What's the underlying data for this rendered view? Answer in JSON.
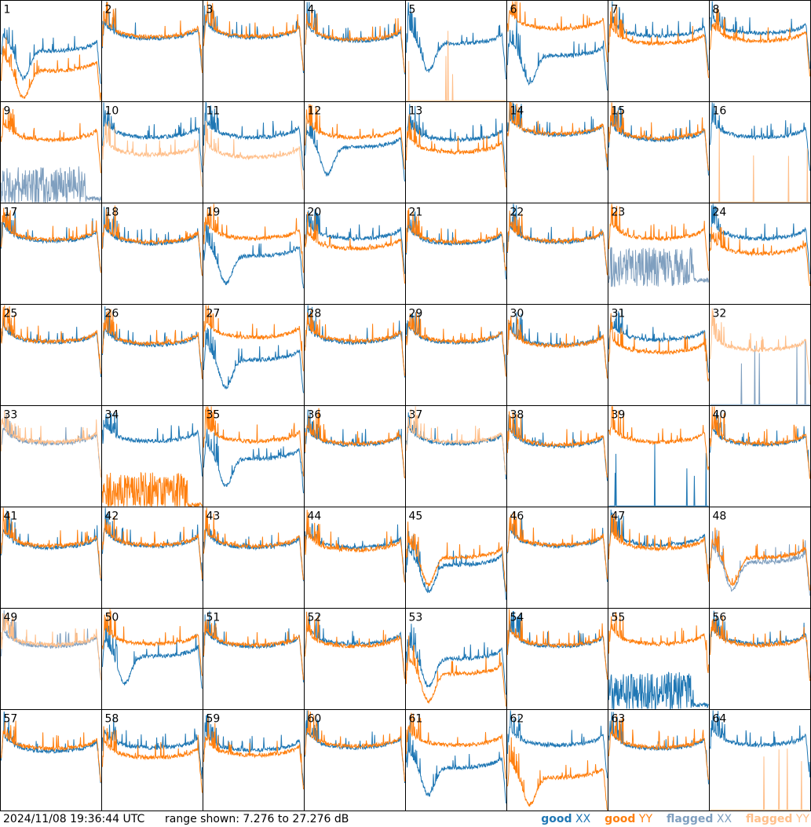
{
  "footer": {
    "timestamp": "2024/11/08 19:36:44 UTC",
    "range_text": "range shown: 7.276 to 27.276 dB"
  },
  "legend": [
    {
      "id": "good-xx",
      "word": "good",
      "pol": "XX",
      "color": "#1f77b4",
      "word_color": "#1f77b4"
    },
    {
      "id": "good-yy",
      "word": "good",
      "pol": "YY",
      "color": "#ff7f0e",
      "word_color": "#ff7f0e"
    },
    {
      "id": "flagged-xx",
      "word": "flagged",
      "pol": "XX",
      "color": "#7f9fbf",
      "word_color": "#7f9fbf"
    },
    {
      "id": "flagged-yy",
      "word": "flagged",
      "pol": "YY",
      "color": "#ffbf8a",
      "word_color": "#ffbf8a"
    }
  ],
  "colors": {
    "good_xx": "#1f77b4",
    "good_yy": "#ff7f0e",
    "flagged_xx": "#7f9fbf",
    "flagged_yy": "#ffbf8a"
  },
  "chart_data": {
    "type": "line",
    "layout": "8x8 small multiples (one panel per tile 1-64)",
    "ylim": [
      7.276,
      27.276
    ],
    "yunit": "dB",
    "xlabel": "",
    "ylabel": "",
    "note_x": "channel index 0-1 (normalized spectrum)",
    "panels": [
      {
        "tile": 1,
        "xx": {
          "shape": "drop",
          "level": 18.5,
          "flag": false
        },
        "yy": {
          "shape": "drop",
          "level": 14.5,
          "flag": false
        }
      },
      {
        "tile": 2,
        "xx": {
          "shape": "normal",
          "level": 21.0,
          "flag": false
        },
        "yy": {
          "shape": "normal",
          "level": 21.3,
          "flag": false
        }
      },
      {
        "tile": 3,
        "xx": {
          "shape": "normal",
          "level": 21.2,
          "flag": false
        },
        "yy": {
          "shape": "normal",
          "level": 21.4,
          "flag": false
        }
      },
      {
        "tile": 4,
        "xx": {
          "shape": "normal",
          "level": 20.5,
          "flag": false
        },
        "yy": {
          "shape": "normal",
          "level": 20.8,
          "flag": false
        }
      },
      {
        "tile": 5,
        "xx": {
          "shape": "drop",
          "level": 20.0,
          "flag": false
        },
        "yy": {
          "shape": "dead",
          "level": 7.3,
          "flag": true
        }
      },
      {
        "tile": 6,
        "xx": {
          "shape": "drop",
          "level": 17.5,
          "flag": false
        },
        "yy": {
          "shape": "normal",
          "level": 23.0,
          "flag": false
        }
      },
      {
        "tile": 7,
        "xx": {
          "shape": "normal",
          "level": 21.5,
          "flag": false
        },
        "yy": {
          "shape": "normal",
          "level": 20.0,
          "flag": false
        }
      },
      {
        "tile": 8,
        "xx": {
          "shape": "normal",
          "level": 22.0,
          "flag": false
        },
        "yy": {
          "shape": "normal",
          "level": 20.5,
          "flag": false
        }
      },
      {
        "tile": 9,
        "xx": {
          "shape": "noisy",
          "level": 9.0,
          "flag": true
        },
        "yy": {
          "shape": "normal",
          "level": 21.0,
          "flag": false
        }
      },
      {
        "tile": 10,
        "xx": {
          "shape": "normal",
          "level": 21.5,
          "flag": false
        },
        "yy": {
          "shape": "normal",
          "level": 18.0,
          "flag": true
        }
      },
      {
        "tile": 11,
        "xx": {
          "shape": "normal",
          "level": 21.5,
          "flag": false
        },
        "yy": {
          "shape": "normal",
          "level": 17.5,
          "flag": true
        }
      },
      {
        "tile": 12,
        "xx": {
          "shape": "drop",
          "level": 19.5,
          "flag": false
        },
        "yy": {
          "shape": "normal",
          "level": 21.5,
          "flag": false
        }
      },
      {
        "tile": 13,
        "xx": {
          "shape": "normal",
          "level": 21.0,
          "flag": false
        },
        "yy": {
          "shape": "normal",
          "level": 18.5,
          "flag": false
        }
      },
      {
        "tile": 14,
        "xx": {
          "shape": "normal",
          "level": 22.0,
          "flag": false
        },
        "yy": {
          "shape": "normal",
          "level": 22.2,
          "flag": false
        }
      },
      {
        "tile": 15,
        "xx": {
          "shape": "normal",
          "level": 21.0,
          "flag": false
        },
        "yy": {
          "shape": "normal",
          "level": 21.3,
          "flag": false
        }
      },
      {
        "tile": 16,
        "xx": {
          "shape": "normal",
          "level": 21.5,
          "flag": false
        },
        "yy": {
          "shape": "dead",
          "level": 7.3,
          "flag": true
        }
      },
      {
        "tile": 17,
        "xx": {
          "shape": "normal",
          "level": 21.0,
          "flag": false
        },
        "yy": {
          "shape": "normal",
          "level": 21.3,
          "flag": false
        }
      },
      {
        "tile": 18,
        "xx": {
          "shape": "normal",
          "level": 20.5,
          "flag": false
        },
        "yy": {
          "shape": "normal",
          "level": 20.8,
          "flag": false
        }
      },
      {
        "tile": 19,
        "xx": {
          "shape": "drop",
          "level": 18.0,
          "flag": false
        },
        "yy": {
          "shape": "normal",
          "level": 21.5,
          "flag": false
        }
      },
      {
        "tile": 20,
        "xx": {
          "shape": "normal",
          "level": 21.5,
          "flag": false
        },
        "yy": {
          "shape": "normal",
          "level": 19.5,
          "flag": false
        }
      },
      {
        "tile": 21,
        "xx": {
          "shape": "normal",
          "level": 20.5,
          "flag": false
        },
        "yy": {
          "shape": "normal",
          "level": 20.8,
          "flag": false
        }
      },
      {
        "tile": 22,
        "xx": {
          "shape": "normal",
          "level": 20.8,
          "flag": false
        },
        "yy": {
          "shape": "normal",
          "level": 21.0,
          "flag": false
        }
      },
      {
        "tile": 23,
        "xx": {
          "shape": "noisy",
          "level": 13.0,
          "flag": true
        },
        "yy": {
          "shape": "normal",
          "level": 21.5,
          "flag": false
        }
      },
      {
        "tile": 24,
        "xx": {
          "shape": "normal",
          "level": 21.5,
          "flag": false
        },
        "yy": {
          "shape": "normal",
          "level": 18.5,
          "flag": false
        }
      },
      {
        "tile": 25,
        "xx": {
          "shape": "normal",
          "level": 21.0,
          "flag": false
        },
        "yy": {
          "shape": "normal",
          "level": 21.2,
          "flag": false
        }
      },
      {
        "tile": 26,
        "xx": {
          "shape": "normal",
          "level": 20.5,
          "flag": false
        },
        "yy": {
          "shape": "normal",
          "level": 20.8,
          "flag": false
        }
      },
      {
        "tile": 27,
        "xx": {
          "shape": "drop",
          "level": 17.5,
          "flag": false
        },
        "yy": {
          "shape": "normal",
          "level": 22.0,
          "flag": false
        }
      },
      {
        "tile": 28,
        "xx": {
          "shape": "normal",
          "level": 21.0,
          "flag": false
        },
        "yy": {
          "shape": "normal",
          "level": 21.3,
          "flag": false
        }
      },
      {
        "tile": 29,
        "xx": {
          "shape": "normal",
          "level": 21.0,
          "flag": false
        },
        "yy": {
          "shape": "normal",
          "level": 21.2,
          "flag": false
        }
      },
      {
        "tile": 30,
        "xx": {
          "shape": "normal",
          "level": 20.5,
          "flag": false
        },
        "yy": {
          "shape": "normal",
          "level": 20.3,
          "flag": false
        }
      },
      {
        "tile": 31,
        "xx": {
          "shape": "normal",
          "level": 21.5,
          "flag": false
        },
        "yy": {
          "shape": "normal",
          "level": 19.0,
          "flag": false
        }
      },
      {
        "tile": 32,
        "xx": {
          "shape": "dead",
          "level": 7.3,
          "flag": true
        },
        "yy": {
          "shape": "normal",
          "level": 19.5,
          "flag": true
        }
      },
      {
        "tile": 33,
        "xx": {
          "shape": "normal",
          "level": 21.0,
          "flag": true
        },
        "yy": {
          "shape": "normal",
          "level": 21.3,
          "flag": true
        }
      },
      {
        "tile": 34,
        "xx": {
          "shape": "normal",
          "level": 21.5,
          "flag": false
        },
        "yy": {
          "shape": "noisy",
          "level": 8.5,
          "flag": false
        }
      },
      {
        "tile": 35,
        "xx": {
          "shape": "drop",
          "level": 18.0,
          "flag": false
        },
        "yy": {
          "shape": "normal",
          "level": 21.5,
          "flag": false
        }
      },
      {
        "tile": 36,
        "xx": {
          "shape": "normal",
          "level": 20.8,
          "flag": false
        },
        "yy": {
          "shape": "normal",
          "level": 21.0,
          "flag": false
        }
      },
      {
        "tile": 37,
        "xx": {
          "shape": "normal",
          "level": 21.0,
          "flag": false
        },
        "yy": {
          "shape": "normal",
          "level": 21.3,
          "flag": true
        }
      },
      {
        "tile": 38,
        "xx": {
          "shape": "normal",
          "level": 20.5,
          "flag": false
        },
        "yy": {
          "shape": "normal",
          "level": 20.8,
          "flag": false
        }
      },
      {
        "tile": 39,
        "xx": {
          "shape": "dead",
          "level": 7.3,
          "flag": false
        },
        "yy": {
          "shape": "normal",
          "level": 21.3,
          "flag": false
        }
      },
      {
        "tile": 40,
        "xx": {
          "shape": "normal",
          "level": 20.8,
          "flag": false
        },
        "yy": {
          "shape": "normal",
          "level": 21.0,
          "flag": false
        }
      },
      {
        "tile": 41,
        "xx": {
          "shape": "normal",
          "level": 20.5,
          "flag": false
        },
        "yy": {
          "shape": "normal",
          "level": 20.8,
          "flag": false
        }
      },
      {
        "tile": 42,
        "xx": {
          "shape": "normal",
          "level": 20.8,
          "flag": false
        },
        "yy": {
          "shape": "normal",
          "level": 21.0,
          "flag": false
        }
      },
      {
        "tile": 43,
        "xx": {
          "shape": "normal",
          "level": 20.5,
          "flag": false
        },
        "yy": {
          "shape": "normal",
          "level": 20.8,
          "flag": false
        }
      },
      {
        "tile": 44,
        "xx": {
          "shape": "normal",
          "level": 20.5,
          "flag": false
        },
        "yy": {
          "shape": "normal",
          "level": 20.0,
          "flag": false
        }
      },
      {
        "tile": 45,
        "xx": {
          "shape": "drop",
          "level": 17.0,
          "flag": false
        },
        "yy": {
          "shape": "drop",
          "level": 18.5,
          "flag": false
        }
      },
      {
        "tile": 46,
        "xx": {
          "shape": "normal",
          "level": 20.8,
          "flag": false
        },
        "yy": {
          "shape": "normal",
          "level": 21.0,
          "flag": false
        }
      },
      {
        "tile": 47,
        "xx": {
          "shape": "normal",
          "level": 21.0,
          "flag": false
        },
        "yy": {
          "shape": "normal",
          "level": 20.3,
          "flag": false
        }
      },
      {
        "tile": 48,
        "xx": {
          "shape": "drop",
          "level": 17.5,
          "flag": true
        },
        "yy": {
          "shape": "drop",
          "level": 18.5,
          "flag": false
        }
      },
      {
        "tile": 49,
        "xx": {
          "shape": "normal",
          "level": 21.0,
          "flag": true
        },
        "yy": {
          "shape": "normal",
          "level": 21.3,
          "flag": true
        }
      },
      {
        "tile": 50,
        "xx": {
          "shape": "drop",
          "level": 19.0,
          "flag": false
        },
        "yy": {
          "shape": "normal",
          "level": 21.5,
          "flag": false
        }
      },
      {
        "tile": 51,
        "xx": {
          "shape": "normal",
          "level": 21.0,
          "flag": false
        },
        "yy": {
          "shape": "normal",
          "level": 21.2,
          "flag": false
        }
      },
      {
        "tile": 52,
        "xx": {
          "shape": "normal",
          "level": 21.5,
          "flag": false
        },
        "yy": {
          "shape": "normal",
          "level": 21.0,
          "flag": false
        }
      },
      {
        "tile": 53,
        "xx": {
          "shape": "drop",
          "level": 18.5,
          "flag": false
        },
        "yy": {
          "shape": "drop",
          "level": 15.5,
          "flag": false
        }
      },
      {
        "tile": 54,
        "xx": {
          "shape": "normal",
          "level": 21.0,
          "flag": false
        },
        "yy": {
          "shape": "normal",
          "level": 21.2,
          "flag": false
        }
      },
      {
        "tile": 55,
        "xx": {
          "shape": "noisy",
          "level": 9.0,
          "flag": false
        },
        "yy": {
          "shape": "normal",
          "level": 21.5,
          "flag": false
        }
      },
      {
        "tile": 56,
        "xx": {
          "shape": "normal",
          "level": 21.5,
          "flag": false
        },
        "yy": {
          "shape": "normal",
          "level": 21.2,
          "flag": false
        }
      },
      {
        "tile": 57,
        "xx": {
          "shape": "normal",
          "level": 20.3,
          "flag": false
        },
        "yy": {
          "shape": "normal",
          "level": 20.8,
          "flag": false
        }
      },
      {
        "tile": 58,
        "xx": {
          "shape": "normal",
          "level": 21.0,
          "flag": false
        },
        "yy": {
          "shape": "normal",
          "level": 19.0,
          "flag": false
        }
      },
      {
        "tile": 59,
        "xx": {
          "shape": "normal",
          "level": 20.5,
          "flag": false
        },
        "yy": {
          "shape": "normal",
          "level": 19.5,
          "flag": false
        }
      },
      {
        "tile": 60,
        "xx": {
          "shape": "normal",
          "level": 21.0,
          "flag": false
        },
        "yy": {
          "shape": "normal",
          "level": 21.3,
          "flag": false
        }
      },
      {
        "tile": 61,
        "xx": {
          "shape": "drop",
          "level": 17.0,
          "flag": false
        },
        "yy": {
          "shape": "normal",
          "level": 21.5,
          "flag": false
        }
      },
      {
        "tile": 62,
        "xx": {
          "shape": "normal",
          "level": 21.5,
          "flag": false
        },
        "yy": {
          "shape": "drop",
          "level": 15.0,
          "flag": false
        }
      },
      {
        "tile": 63,
        "xx": {
          "shape": "normal",
          "level": 20.8,
          "flag": false
        },
        "yy": {
          "shape": "normal",
          "level": 21.0,
          "flag": false
        }
      },
      {
        "tile": 64,
        "xx": {
          "shape": "normal",
          "level": 21.5,
          "flag": false
        },
        "yy": {
          "shape": "dead",
          "level": 7.3,
          "flag": true
        }
      }
    ]
  }
}
